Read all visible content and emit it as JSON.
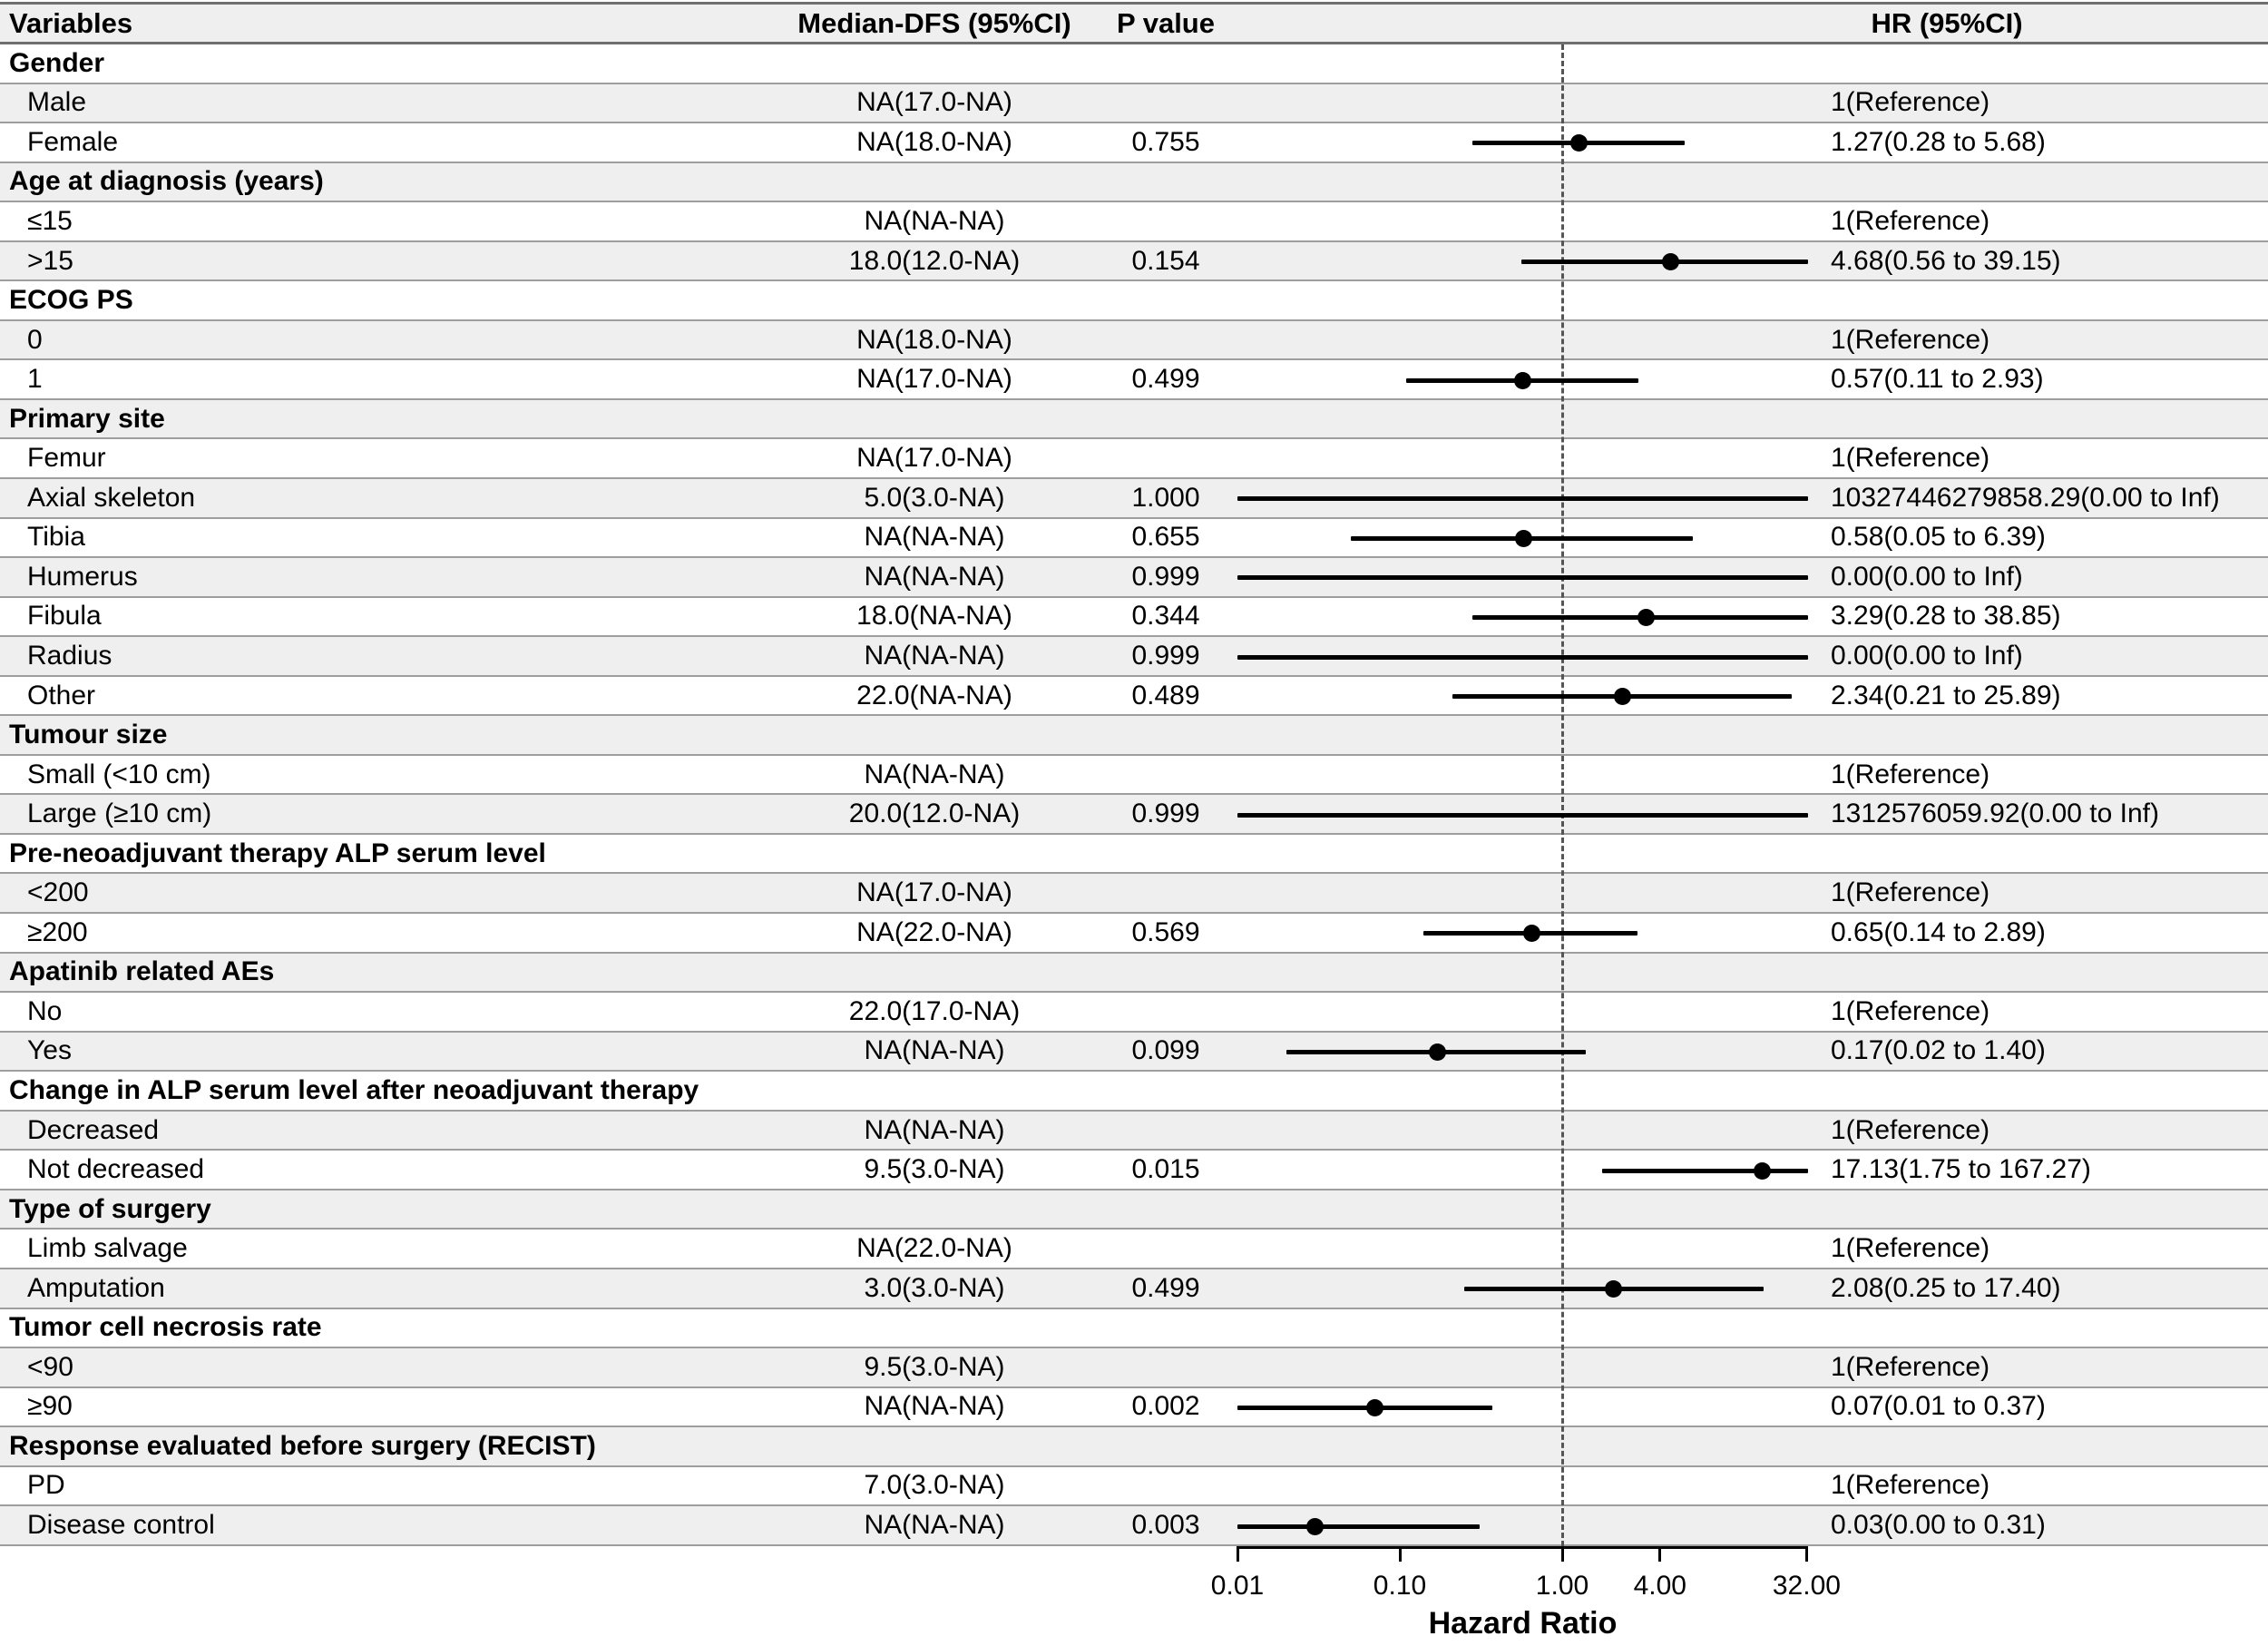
{
  "table": {
    "columns": {
      "variables": "Variables",
      "median": "Median-DFS (95%CI)",
      "pvalue": "P value",
      "hr": "HR (95%CI)"
    }
  },
  "chart_data": {
    "type": "forest",
    "x_axis": {
      "scale": "log",
      "ticks": [
        0.01,
        0.1,
        1.0,
        4.0,
        32.0
      ],
      "tick_labels": [
        "0.01",
        "0.10",
        "1.00",
        "4.00",
        "32.00"
      ],
      "title": "Hazard Ratio",
      "reference_line": 1.0,
      "domain": [
        0.01,
        32.7
      ]
    },
    "rows": [
      {
        "label": "Gender",
        "group": true,
        "median": "",
        "p": "",
        "hr": "",
        "estimate": null,
        "ci_low": null,
        "ci_high": null
      },
      {
        "label": "Male",
        "group": false,
        "median": "NA(17.0-NA)",
        "p": "",
        "hr": "1(Reference)",
        "estimate": null,
        "ci_low": null,
        "ci_high": null
      },
      {
        "label": "Female",
        "group": false,
        "median": "NA(18.0-NA)",
        "p": "0.755",
        "hr": "1.27(0.28 to 5.68)",
        "estimate": 1.27,
        "ci_low": 0.28,
        "ci_high": 5.68
      },
      {
        "label": "Age at diagnosis (years)",
        "group": true,
        "median": "",
        "p": "",
        "hr": "",
        "estimate": null,
        "ci_low": null,
        "ci_high": null
      },
      {
        "label": "≤15",
        "group": false,
        "median": "NA(NA-NA)",
        "p": "",
        "hr": "1(Reference)",
        "estimate": null,
        "ci_low": null,
        "ci_high": null
      },
      {
        "label": ">15",
        "group": false,
        "median": "18.0(12.0-NA)",
        "p": "0.154",
        "hr": "4.68(0.56 to 39.15)",
        "estimate": 4.68,
        "ci_low": 0.56,
        "ci_high": 39.15
      },
      {
        "label": "ECOG PS",
        "group": true,
        "median": "",
        "p": "",
        "hr": "",
        "estimate": null,
        "ci_low": null,
        "ci_high": null
      },
      {
        "label": "0",
        "group": false,
        "median": "NA(18.0-NA)",
        "p": "",
        "hr": "1(Reference)",
        "estimate": null,
        "ci_low": null,
        "ci_high": null
      },
      {
        "label": "1",
        "group": false,
        "median": "NA(17.0-NA)",
        "p": "0.499",
        "hr": "0.57(0.11 to 2.93)",
        "estimate": 0.57,
        "ci_low": 0.11,
        "ci_high": 2.93
      },
      {
        "label": "Primary site",
        "group": true,
        "median": "",
        "p": "",
        "hr": "",
        "estimate": null,
        "ci_low": null,
        "ci_high": null
      },
      {
        "label": "Femur",
        "group": false,
        "median": "NA(17.0-NA)",
        "p": "",
        "hr": "1(Reference)",
        "estimate": null,
        "ci_low": null,
        "ci_high": null
      },
      {
        "label": "Axial skeleton",
        "group": false,
        "median": "5.0(3.0-NA)",
        "p": "1.000",
        "hr": "10327446279858.29(0.00 to Inf)",
        "estimate": 10327446279858.29,
        "ci_low": 0,
        "ci_high": "Inf"
      },
      {
        "label": "Tibia",
        "group": false,
        "median": "NA(NA-NA)",
        "p": "0.655",
        "hr": "0.58(0.05 to 6.39)",
        "estimate": 0.58,
        "ci_low": 0.05,
        "ci_high": 6.39
      },
      {
        "label": "Humerus",
        "group": false,
        "median": "NA(NA-NA)",
        "p": "0.999",
        "hr": "0.00(0.00 to Inf)",
        "estimate": 0,
        "ci_low": 0,
        "ci_high": "Inf"
      },
      {
        "label": "Fibula",
        "group": false,
        "median": "18.0(NA-NA)",
        "p": "0.344",
        "hr": "3.29(0.28 to 38.85)",
        "estimate": 3.29,
        "ci_low": 0.28,
        "ci_high": 38.85
      },
      {
        "label": "Radius",
        "group": false,
        "median": "NA(NA-NA)",
        "p": "0.999",
        "hr": "0.00(0.00 to Inf)",
        "estimate": 0,
        "ci_low": 0,
        "ci_high": "Inf"
      },
      {
        "label": "Other",
        "group": false,
        "median": "22.0(NA-NA)",
        "p": "0.489",
        "hr": "2.34(0.21 to 25.89)",
        "estimate": 2.34,
        "ci_low": 0.21,
        "ci_high": 25.89
      },
      {
        "label": "Tumour size",
        "group": true,
        "median": "",
        "p": "",
        "hr": "",
        "estimate": null,
        "ci_low": null,
        "ci_high": null
      },
      {
        "label": "Small (<10 cm)",
        "group": false,
        "median": "NA(NA-NA)",
        "p": "",
        "hr": "1(Reference)",
        "estimate": null,
        "ci_low": null,
        "ci_high": null
      },
      {
        "label": "Large (≥10 cm)",
        "group": false,
        "median": "20.0(12.0-NA)",
        "p": "0.999",
        "hr": "1312576059.92(0.00 to Inf)",
        "estimate": 1312576059.92,
        "ci_low": 0,
        "ci_high": "Inf"
      },
      {
        "label": "Pre-neoadjuvant therapy ALP serum level",
        "group": true,
        "median": "",
        "p": "",
        "hr": "",
        "estimate": null,
        "ci_low": null,
        "ci_high": null
      },
      {
        "label": "<200",
        "group": false,
        "median": "NA(17.0-NA)",
        "p": "",
        "hr": "1(Reference)",
        "estimate": null,
        "ci_low": null,
        "ci_high": null
      },
      {
        "label": "≥200",
        "group": false,
        "median": "NA(22.0-NA)",
        "p": "0.569",
        "hr": "0.65(0.14 to 2.89)",
        "estimate": 0.65,
        "ci_low": 0.14,
        "ci_high": 2.89
      },
      {
        "label": "Apatinib related AEs",
        "group": true,
        "median": "",
        "p": "",
        "hr": "",
        "estimate": null,
        "ci_low": null,
        "ci_high": null
      },
      {
        "label": "No",
        "group": false,
        "median": "22.0(17.0-NA)",
        "p": "",
        "hr": "1(Reference)",
        "estimate": null,
        "ci_low": null,
        "ci_high": null
      },
      {
        "label": "Yes",
        "group": false,
        "median": "NA(NA-NA)",
        "p": "0.099",
        "hr": "0.17(0.02 to 1.40)",
        "estimate": 0.17,
        "ci_low": 0.02,
        "ci_high": 1.4
      },
      {
        "label": "Change in ALP serum level after neoadjuvant therapy",
        "group": true,
        "median": "",
        "p": "",
        "hr": "",
        "estimate": null,
        "ci_low": null,
        "ci_high": null
      },
      {
        "label": "Decreased",
        "group": false,
        "median": "NA(NA-NA)",
        "p": "",
        "hr": "1(Reference)",
        "estimate": null,
        "ci_low": null,
        "ci_high": null
      },
      {
        "label": "Not decreased",
        "group": false,
        "median": "9.5(3.0-NA)",
        "p": "0.015",
        "hr": "17.13(1.75 to 167.27)",
        "estimate": 17.13,
        "ci_low": 1.75,
        "ci_high": 167.27
      },
      {
        "label": "Type of surgery",
        "group": true,
        "median": "",
        "p": "",
        "hr": "",
        "estimate": null,
        "ci_low": null,
        "ci_high": null
      },
      {
        "label": "Limb salvage",
        "group": false,
        "median": "NA(22.0-NA)",
        "p": "",
        "hr": "1(Reference)",
        "estimate": null,
        "ci_low": null,
        "ci_high": null
      },
      {
        "label": "Amputation",
        "group": false,
        "median": "3.0(3.0-NA)",
        "p": "0.499",
        "hr": "2.08(0.25 to 17.40)",
        "estimate": 2.08,
        "ci_low": 0.25,
        "ci_high": 17.4
      },
      {
        "label": "Tumor cell necrosis rate",
        "group": true,
        "median": "",
        "p": "",
        "hr": "",
        "estimate": null,
        "ci_low": null,
        "ci_high": null
      },
      {
        "label": "<90",
        "group": false,
        "median": "9.5(3.0-NA)",
        "p": "",
        "hr": "1(Reference)",
        "estimate": null,
        "ci_low": null,
        "ci_high": null
      },
      {
        "label": "≥90",
        "group": false,
        "median": "NA(NA-NA)",
        "p": "0.002",
        "hr": "0.07(0.01 to 0.37)",
        "estimate": 0.07,
        "ci_low": 0.01,
        "ci_high": 0.37
      },
      {
        "label": "Response evaluated before surgery (RECIST)",
        "group": true,
        "median": "",
        "p": "",
        "hr": "",
        "estimate": null,
        "ci_low": null,
        "ci_high": null
      },
      {
        "label": "PD",
        "group": false,
        "median": "7.0(3.0-NA)",
        "p": "",
        "hr": "1(Reference)",
        "estimate": null,
        "ci_low": null,
        "ci_high": null
      },
      {
        "label": "Disease control",
        "group": false,
        "median": "NA(NA-NA)",
        "p": "0.003",
        "hr": "0.03(0.00 to 0.31)",
        "estimate": 0.03,
        "ci_low": 0,
        "ci_high": 0.31
      }
    ]
  }
}
